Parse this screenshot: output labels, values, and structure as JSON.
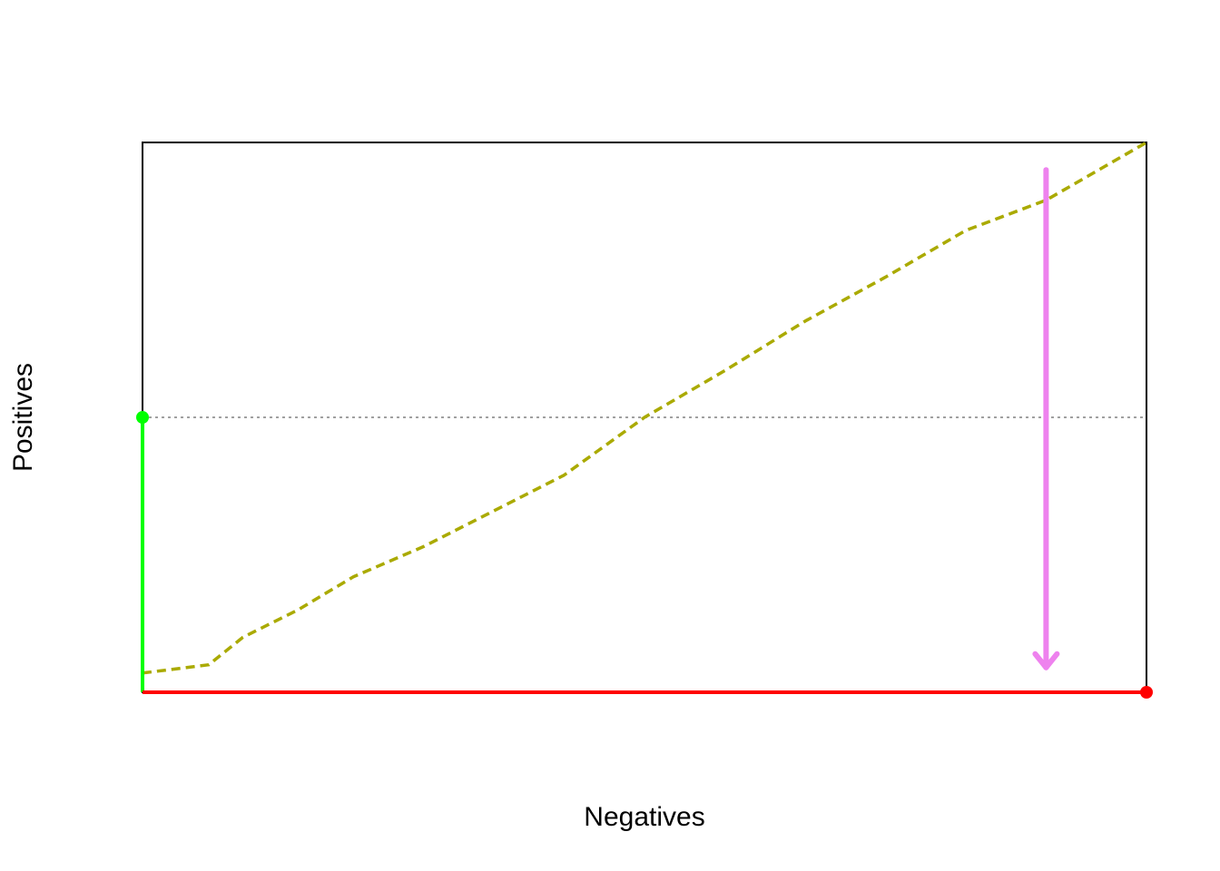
{
  "chart_data": {
    "type": "line",
    "title": "",
    "xlabel": "Negatives",
    "ylabel": "Positives",
    "xlim": [
      0,
      1
    ],
    "ylim": [
      0,
      1
    ],
    "axes_ticks": false,
    "grid": false,
    "reference_lines": [
      {
        "orientation": "horizontal",
        "y": 0.5,
        "style": "dotted",
        "color": "#808080"
      }
    ],
    "series": [
      {
        "style": "dashed",
        "color": "#AAAA00",
        "x": [
          0.0,
          0.066,
          0.1,
          0.155,
          0.21,
          0.28,
          0.35,
          0.42,
          0.5,
          0.58,
          0.66,
          0.74,
          0.82,
          0.9,
          1.0
        ],
        "y": [
          0.035,
          0.05,
          0.1,
          0.15,
          0.21,
          0.265,
          0.33,
          0.395,
          0.5,
          0.585,
          0.675,
          0.755,
          0.84,
          0.895,
          1.0
        ]
      },
      {
        "style": "solid",
        "color": "#00FF00",
        "x": [
          0.0,
          0.0
        ],
        "y": [
          0.0,
          0.5
        ]
      },
      {
        "style": "solid",
        "color": "#FF0000",
        "x": [
          0.0,
          1.0
        ],
        "y": [
          0.0,
          0.0
        ]
      }
    ],
    "points": [
      {
        "x": 0.0,
        "y": 0.5,
        "color": "#00FF00"
      },
      {
        "x": 1.0,
        "y": 0.0,
        "color": "#FF0000"
      }
    ],
    "annotations": [
      {
        "type": "arrow",
        "x": 0.9,
        "y_from": 0.95,
        "y_to": 0.045,
        "color": "#EE82EE"
      }
    ]
  }
}
